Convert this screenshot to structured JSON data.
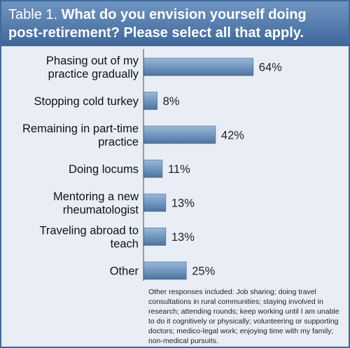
{
  "table_title": {
    "prefix": "Table 1.",
    "text": "What do you envision yourself doing post-retirement? Please select all that apply."
  },
  "chart_data": {
    "type": "bar",
    "orientation": "horizontal",
    "categories": [
      [
        "Phasing out of my",
        "practice gradually"
      ],
      [
        "Stopping cold turkey"
      ],
      [
        "Remaining in part-time",
        "practice"
      ],
      [
        "Doing locums"
      ],
      [
        "Mentoring a new",
        "rheumatologist"
      ],
      [
        "Traveling abroad to",
        "teach"
      ],
      [
        "Other"
      ]
    ],
    "values": [
      64,
      8,
      42,
      11,
      13,
      13,
      25
    ],
    "value_labels": [
      "64%",
      "8%",
      "42%",
      "11%",
      "13%",
      "13%",
      "25%"
    ],
    "xlim": [
      0,
      100
    ],
    "grid": false,
    "legend": "none"
  },
  "note": "Other responses included: Job sharing; doing travel consultations in rural communities; staying involved in research; attending rounds; keep working until I am unable to do it cognitively or physically; volunteering or supporting doctors; medico-legal work; enjoying time with my family; non-medical pursuits.",
  "colors": {
    "header_top": "#6f95c2",
    "header_bottom": "#3e6799",
    "bar_light": "#9ab7d6",
    "bar_dark": "#4d739f",
    "axis": "#4a4a4a",
    "panel_bg": "#e9eef6"
  }
}
